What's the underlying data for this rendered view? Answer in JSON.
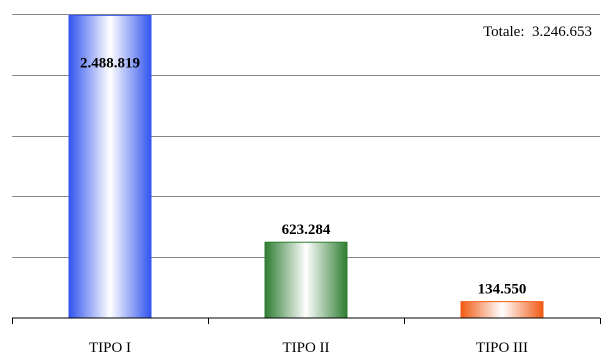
{
  "chart_data": {
    "type": "bar",
    "categories": [
      "TIPO I",
      "TIPO II",
      "TIPO III"
    ],
    "values": [
      2488819,
      623284,
      134550
    ],
    "value_labels": [
      "2.488.819",
      "623.284",
      "134.550"
    ],
    "annotation": "Totale:  3.246.653",
    "ylim": [
      0,
      2500000
    ],
    "grid": true,
    "bar_colors": [
      "#3355ee",
      "#2e7d32",
      "#f05a14"
    ]
  }
}
